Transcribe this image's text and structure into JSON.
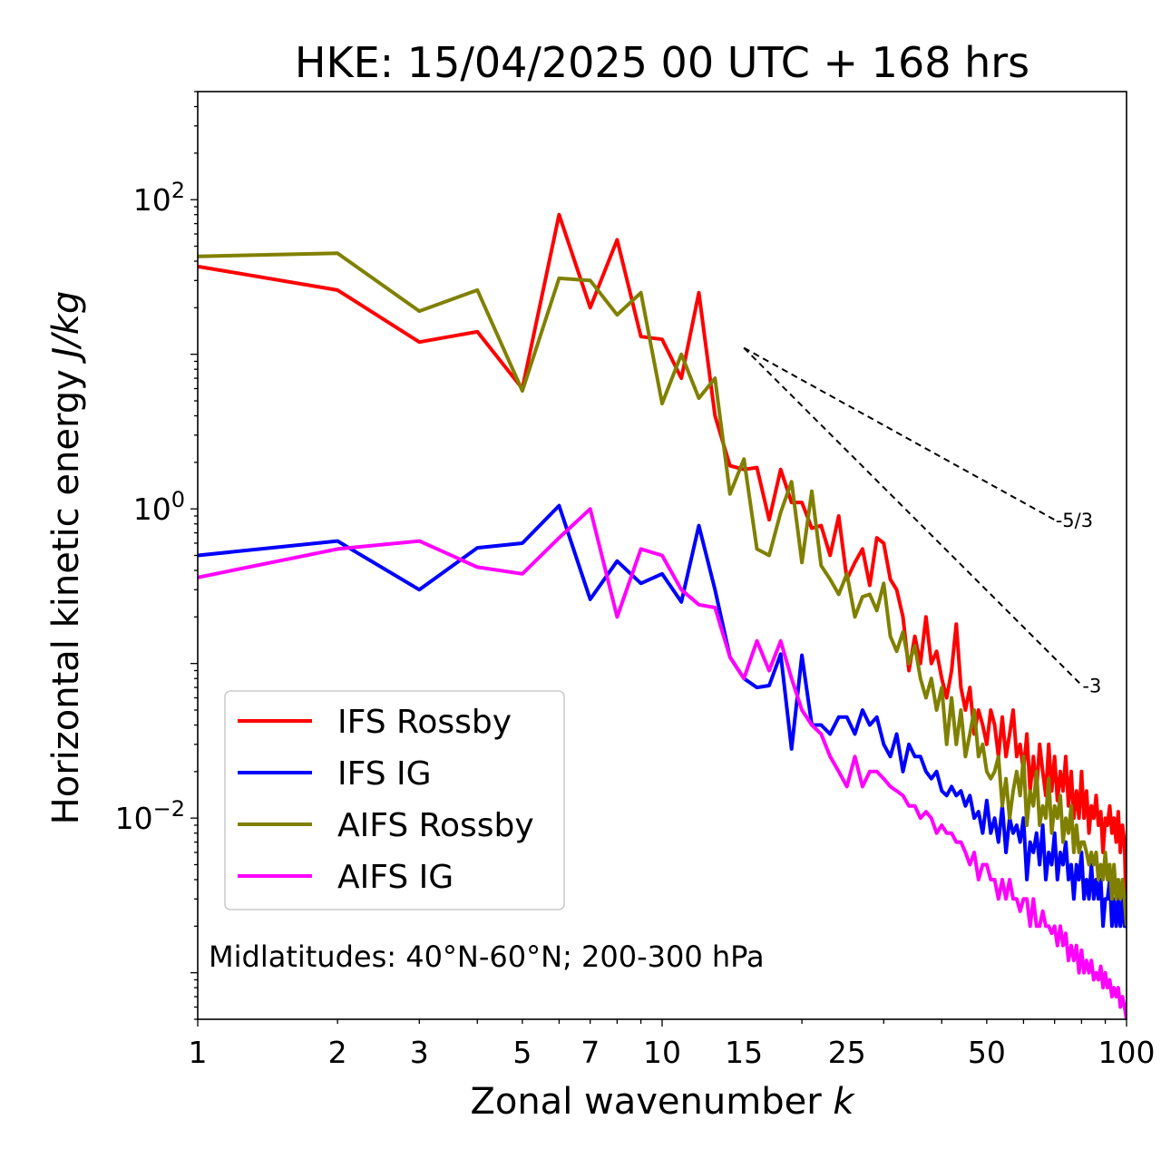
{
  "chart_data": {
    "type": "line",
    "title": "HKE: 15/04/2025 00 UTC + 168 hrs",
    "xlabel": "Zonal wavenumber",
    "xlabel_var": "k",
    "ylabel": "Horizontal kinetic energy",
    "ylabel_unit": "J/kg",
    "xscale": "log",
    "yscale": "log",
    "xlim": [
      1,
      100
    ],
    "ylim": [
      0.0005,
      500
    ],
    "xticks": [
      {
        "value": 1,
        "label": "1"
      },
      {
        "value": 2,
        "label": "2"
      },
      {
        "value": 3,
        "label": "3"
      },
      {
        "value": 5,
        "label": "5"
      },
      {
        "value": 7,
        "label": "7"
      },
      {
        "value": 10,
        "label": "10"
      },
      {
        "value": 15,
        "label": "15"
      },
      {
        "value": 25,
        "label": "25"
      },
      {
        "value": 50,
        "label": "50"
      },
      {
        "value": 100,
        "label": "100"
      }
    ],
    "yticks": [
      {
        "value": 100,
        "base": "10",
        "exp": "2"
      },
      {
        "value": 1,
        "base": "10",
        "exp": "0"
      },
      {
        "value": 0.01,
        "base": "10",
        "exp": "−2"
      }
    ],
    "grid": false,
    "legend_position": "lower-left",
    "annotation": "Midlatitudes: 40°N-60°N; 200-300 hPa",
    "reference_slopes": [
      {
        "label": "-5/3",
        "slope": -1.6667,
        "x": [
          15,
          70
        ],
        "y": [
          11.0,
          0.85
        ]
      },
      {
        "label": "-3",
        "slope": -3,
        "x": [
          15,
          80
        ],
        "y": [
          11.0,
          0.0725
        ]
      }
    ],
    "series": [
      {
        "name": "IFS Rossby",
        "color": "#ff0000",
        "x": [
          1,
          2,
          3,
          4,
          5,
          6,
          7,
          8,
          9,
          10,
          11,
          12,
          13,
          14,
          15,
          16,
          17,
          18,
          19,
          20,
          21,
          22,
          23,
          24,
          25,
          26,
          27,
          28,
          29,
          30,
          31,
          32,
          33,
          34,
          35,
          36,
          37,
          38,
          39,
          40,
          41,
          42,
          43,
          44,
          45,
          46,
          47,
          48,
          49,
          50,
          51,
          52,
          53,
          54,
          55,
          56,
          57,
          58,
          59,
          60,
          61,
          62,
          63,
          64,
          65,
          66,
          67,
          68,
          69,
          70,
          71,
          72,
          73,
          74,
          75,
          76,
          77,
          78,
          79,
          80,
          81,
          82,
          83,
          84,
          85,
          86,
          87,
          88,
          89,
          90,
          91,
          92,
          93,
          94,
          95,
          96,
          97,
          98,
          99,
          100
        ],
        "y": [
          37,
          26,
          12,
          14,
          6,
          80,
          20,
          55,
          13,
          12.5,
          7,
          25,
          4,
          1.9,
          1.8,
          1.85,
          0.85,
          1.8,
          1.1,
          1.1,
          0.75,
          0.78,
          0.5,
          0.9,
          0.35,
          0.45,
          0.55,
          0.32,
          0.65,
          0.6,
          0.35,
          0.3,
          0.2,
          0.09,
          0.15,
          0.1,
          0.2,
          0.1,
          0.12,
          0.08,
          0.06,
          0.09,
          0.18,
          0.07,
          0.05,
          0.07,
          0.035,
          0.05,
          0.04,
          0.03,
          0.05,
          0.04,
          0.025,
          0.045,
          0.025,
          0.035,
          0.05,
          0.025,
          0.03,
          0.02,
          0.035,
          0.015,
          0.025,
          0.015,
          0.03,
          0.02,
          0.014,
          0.03,
          0.015,
          0.025,
          0.013,
          0.02,
          0.015,
          0.025,
          0.012,
          0.02,
          0.01,
          0.015,
          0.01,
          0.02,
          0.01,
          0.015,
          0.008,
          0.012,
          0.01,
          0.014,
          0.009,
          0.011,
          0.006,
          0.01,
          0.009,
          0.012,
          0.008,
          0.01,
          0.007,
          0.011,
          0.006,
          0.009,
          0.007,
          0.002
        ]
      },
      {
        "name": "IFS IG",
        "color": "#0000ff",
        "x": [
          1,
          2,
          3,
          4,
          5,
          6,
          7,
          8,
          9,
          10,
          11,
          12,
          13,
          14,
          15,
          16,
          17,
          18,
          19,
          20,
          21,
          22,
          23,
          24,
          25,
          26,
          27,
          28,
          29,
          30,
          31,
          32,
          33,
          34,
          35,
          36,
          37,
          38,
          39,
          40,
          41,
          42,
          43,
          44,
          45,
          46,
          47,
          48,
          49,
          50,
          51,
          52,
          53,
          54,
          55,
          56,
          57,
          58,
          59,
          60,
          61,
          62,
          63,
          64,
          65,
          66,
          67,
          68,
          69,
          70,
          71,
          72,
          73,
          74,
          75,
          76,
          77,
          78,
          79,
          80,
          81,
          82,
          83,
          84,
          85,
          86,
          87,
          88,
          89,
          90,
          91,
          92,
          93,
          94,
          95,
          96,
          97,
          98,
          99,
          100
        ],
        "y": [
          0.5,
          0.62,
          0.3,
          0.56,
          0.6,
          1.05,
          0.26,
          0.46,
          0.33,
          0.38,
          0.25,
          0.78,
          0.3,
          0.11,
          0.08,
          0.07,
          0.072,
          0.115,
          0.028,
          0.113,
          0.04,
          0.04,
          0.035,
          0.045,
          0.045,
          0.035,
          0.05,
          0.04,
          0.045,
          0.03,
          0.025,
          0.035,
          0.02,
          0.03,
          0.025,
          0.025,
          0.02,
          0.018,
          0.02,
          0.015,
          0.014,
          0.016,
          0.014,
          0.015,
          0.012,
          0.014,
          0.01,
          0.011,
          0.008,
          0.013,
          0.008,
          0.01,
          0.007,
          0.012,
          0.006,
          0.01,
          0.008,
          0.009,
          0.007,
          0.01,
          0.004,
          0.007,
          0.006,
          0.008,
          0.005,
          0.009,
          0.004,
          0.006,
          0.005,
          0.008,
          0.004,
          0.006,
          0.005,
          0.007,
          0.004,
          0.005,
          0.003,
          0.005,
          0.004,
          0.006,
          0.003,
          0.004,
          0.003,
          0.005,
          0.003,
          0.004,
          0.003,
          0.004,
          0.002,
          0.003,
          0.003,
          0.004,
          0.002,
          0.003,
          0.002,
          0.003,
          0.002,
          0.003,
          0.002,
          0.002
        ]
      },
      {
        "name": "AIFS Rossby",
        "color": "#808000",
        "x": [
          1,
          2,
          3,
          4,
          5,
          6,
          7,
          8,
          9,
          10,
          11,
          12,
          13,
          14,
          15,
          16,
          17,
          18,
          19,
          20,
          21,
          22,
          23,
          24,
          25,
          26,
          27,
          28,
          29,
          30,
          31,
          32,
          33,
          34,
          35,
          36,
          37,
          38,
          39,
          40,
          41,
          42,
          43,
          44,
          45,
          46,
          47,
          48,
          49,
          50,
          51,
          52,
          53,
          54,
          55,
          56,
          57,
          58,
          59,
          60,
          61,
          62,
          63,
          64,
          65,
          66,
          67,
          68,
          69,
          70,
          71,
          72,
          73,
          74,
          75,
          76,
          77,
          78,
          79,
          80,
          81,
          82,
          83,
          84,
          85,
          86,
          87,
          88,
          89,
          90,
          91,
          92,
          93,
          94,
          95,
          96,
          97,
          98,
          99,
          100
        ],
        "y": [
          43,
          45,
          19,
          26,
          5.8,
          31,
          30,
          18,
          25,
          4.8,
          10,
          5.2,
          7,
          1.25,
          2.1,
          0.55,
          0.5,
          0.95,
          1.5,
          0.45,
          1.3,
          0.43,
          0.35,
          0.28,
          0.38,
          0.2,
          0.27,
          0.28,
          0.22,
          0.33,
          0.15,
          0.12,
          0.16,
          0.1,
          0.13,
          0.08,
          0.06,
          0.08,
          0.05,
          0.07,
          0.03,
          0.06,
          0.03,
          0.05,
          0.025,
          0.035,
          0.05,
          0.025,
          0.03,
          0.02,
          0.018,
          0.02,
          0.025,
          0.012,
          0.018,
          0.01,
          0.015,
          0.02,
          0.014,
          0.025,
          0.009,
          0.015,
          0.012,
          0.02,
          0.009,
          0.012,
          0.01,
          0.018,
          0.008,
          0.012,
          0.01,
          0.014,
          0.007,
          0.01,
          0.008,
          0.012,
          0.006,
          0.009,
          0.006,
          0.007,
          0.007,
          0.006,
          0.005,
          0.006,
          0.005,
          0.006,
          0.004,
          0.005,
          0.004,
          0.006,
          0.004,
          0.005,
          0.003,
          0.005,
          0.003,
          0.004,
          0.003,
          0.004,
          0.003,
          0.002
        ]
      },
      {
        "name": "AIFS IG",
        "color": "#ff00ff",
        "x": [
          1,
          2,
          3,
          4,
          5,
          6,
          7,
          8,
          9,
          10,
          11,
          12,
          13,
          14,
          15,
          16,
          17,
          18,
          19,
          20,
          21,
          22,
          23,
          24,
          25,
          26,
          27,
          28,
          29,
          30,
          31,
          32,
          33,
          34,
          35,
          36,
          37,
          38,
          39,
          40,
          41,
          42,
          43,
          44,
          45,
          46,
          47,
          48,
          49,
          50,
          51,
          52,
          53,
          54,
          55,
          56,
          57,
          58,
          59,
          60,
          61,
          62,
          63,
          64,
          65,
          66,
          67,
          68,
          69,
          70,
          71,
          72,
          73,
          74,
          75,
          76,
          77,
          78,
          79,
          80,
          81,
          82,
          83,
          84,
          85,
          86,
          87,
          88,
          89,
          90,
          91,
          92,
          93,
          94,
          95,
          96,
          97,
          98,
          99,
          100
        ],
        "y": [
          0.36,
          0.55,
          0.62,
          0.42,
          0.38,
          0.65,
          1.0,
          0.2,
          0.55,
          0.5,
          0.3,
          0.24,
          0.23,
          0.11,
          0.08,
          0.14,
          0.09,
          0.14,
          0.08,
          0.05,
          0.04,
          0.035,
          0.025,
          0.02,
          0.016,
          0.025,
          0.016,
          0.02,
          0.02,
          0.018,
          0.016,
          0.015,
          0.014,
          0.012,
          0.012,
          0.01,
          0.011,
          0.01,
          0.008,
          0.009,
          0.008,
          0.008,
          0.007,
          0.007,
          0.006,
          0.005,
          0.006,
          0.004,
          0.005,
          0.005,
          0.004,
          0.004,
          0.003,
          0.004,
          0.003,
          0.004,
          0.003,
          0.003,
          0.0025,
          0.003,
          0.003,
          0.002,
          0.003,
          0.002,
          0.002,
          0.0025,
          0.002,
          0.002,
          0.0018,
          0.002,
          0.0015,
          0.002,
          0.0015,
          0.0018,
          0.0012,
          0.0015,
          0.0012,
          0.0015,
          0.001,
          0.0014,
          0.001,
          0.0012,
          0.001,
          0.0012,
          0.0009,
          0.001,
          0.0009,
          0.0011,
          0.0008,
          0.001,
          0.0008,
          0.0009,
          0.0007,
          0.0008,
          0.0007,
          0.0008,
          0.0006,
          0.0007,
          0.0006,
          0.0005
        ]
      }
    ]
  }
}
